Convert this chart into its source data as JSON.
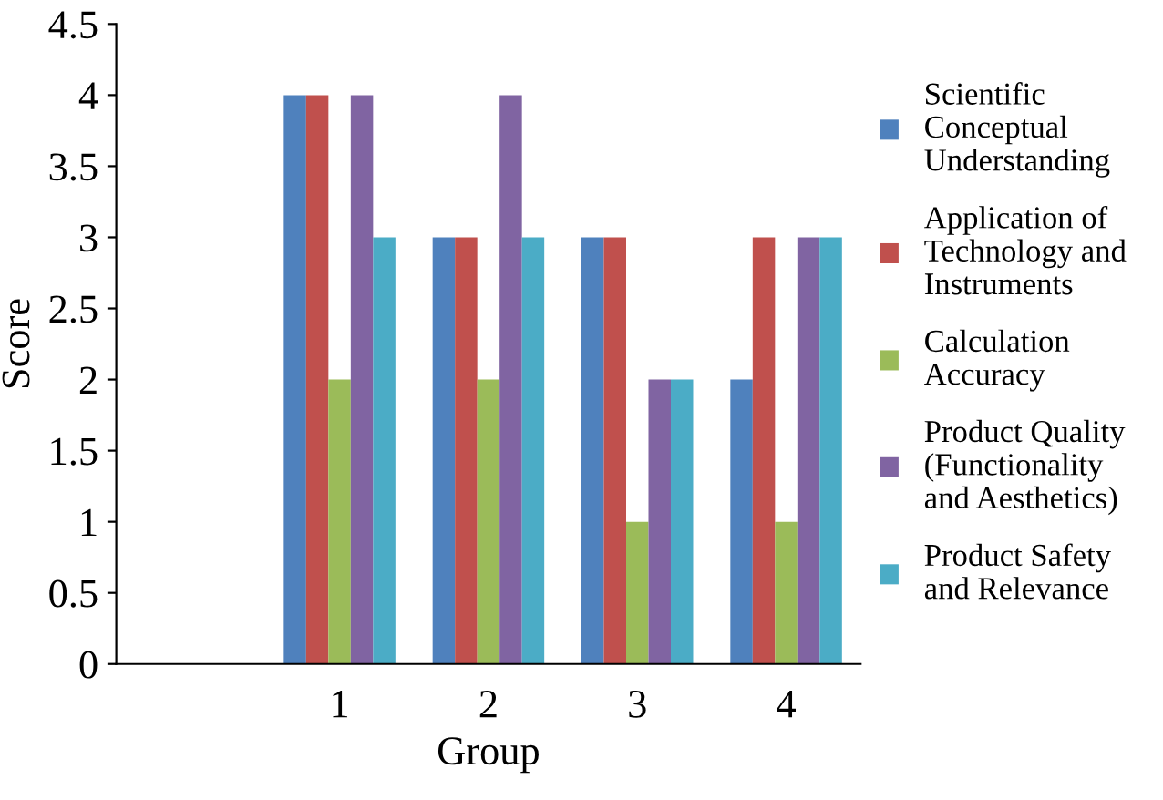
{
  "chart_data": {
    "type": "bar",
    "xlabel": "Group",
    "ylabel": "Score",
    "categories": [
      null,
      "1",
      "2",
      "3",
      "4"
    ],
    "series": [
      {
        "name": "Scientific\nConceptual\nUnderstanding",
        "color": "#4f81bd",
        "values": [
          null,
          4,
          3,
          3,
          2
        ]
      },
      {
        "name": "Application of\nTechnology and\nInstruments",
        "color": "#c0504d",
        "values": [
          null,
          4,
          3,
          3,
          3
        ]
      },
      {
        "name": "Calculation\nAccuracy",
        "color": "#9bbb59",
        "values": [
          null,
          2,
          2,
          1,
          1
        ]
      },
      {
        "name": "Product Quality\n(Functionality\nand Aesthetics)",
        "color": "#8064a2",
        "values": [
          null,
          4,
          4,
          2,
          3
        ]
      },
      {
        "name": "Product Safety\nand Relevance",
        "color": "#4bacc6",
        "values": [
          null,
          3,
          3,
          2,
          3
        ]
      }
    ],
    "ylim": [
      0,
      4.5
    ],
    "yticks": [
      0,
      0.5,
      1,
      1.5,
      2,
      2.5,
      3,
      3.5,
      4,
      4.5
    ],
    "grid": false,
    "legend": "right"
  }
}
